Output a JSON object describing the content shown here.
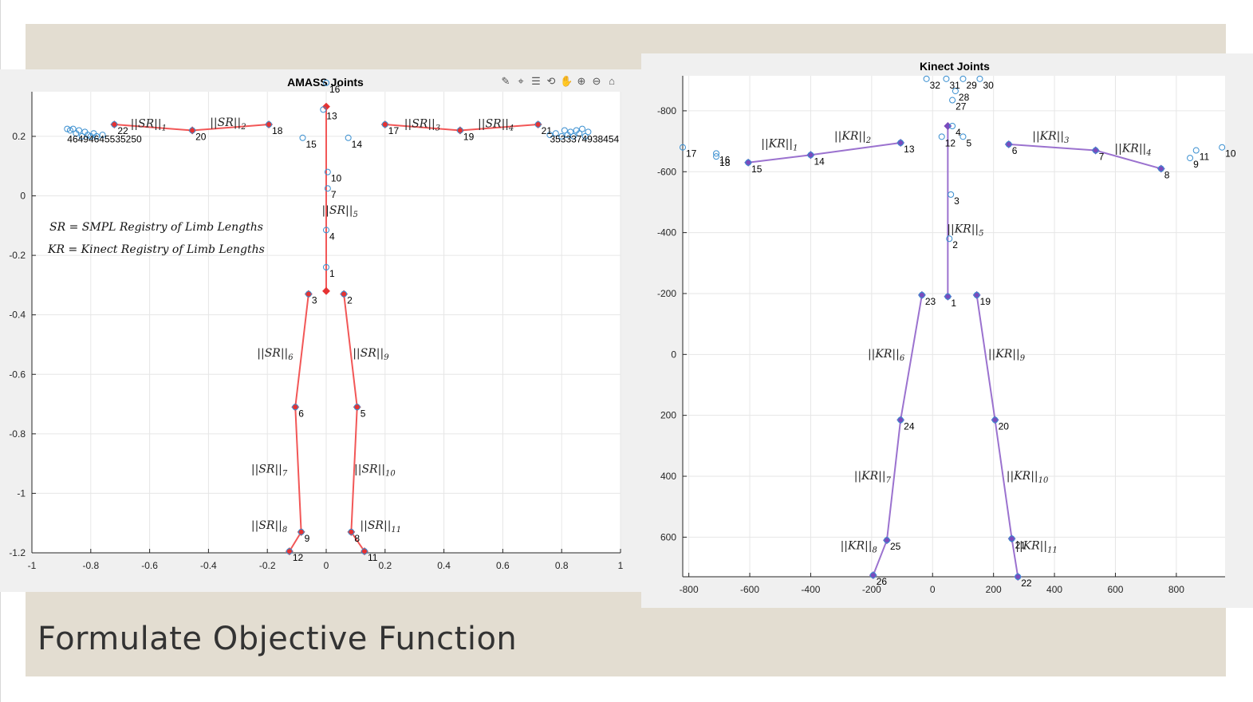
{
  "slide": {
    "title": "Formulate Objective Function",
    "background": "#e3ddd1"
  },
  "amass": {
    "toolbar_icons": [
      "brush-icon",
      "data-tip-icon",
      "legend-icon",
      "rotate-icon",
      "pan-icon",
      "zoom-in-icon",
      "zoom-out-icon",
      "home-icon"
    ],
    "notes": {
      "sr": "SR = SMPL Registry of Limb Lengths",
      "kr": "KR = Kinect Registry of Limb Lengths"
    }
  },
  "chart_data": [
    {
      "type": "scatter",
      "title": "AMASS Joints",
      "xlim": [
        -1,
        1
      ],
      "ylim": [
        -1.2,
        0.35
      ],
      "grid": true,
      "xticks": [
        -1,
        -0.8,
        -0.6,
        -0.4,
        -0.2,
        0,
        0.2,
        0.4,
        0.6,
        0.8,
        1
      ],
      "xtick_labels": [
        "-1",
        "-0.8",
        "-0.6",
        "-0.4",
        "-0.2",
        "0",
        "0.2",
        "0.4",
        "0.6",
        "0.8",
        "1"
      ],
      "yticks": [
        0.2,
        0,
        -0.2,
        -0.4,
        -0.6,
        -0.8,
        -1,
        -1.2
      ],
      "ytick_labels": [
        "0.2",
        "0",
        "-0.2",
        "-0.4",
        "-0.6",
        "-0.8",
        "-1",
        "-1.2"
      ],
      "joints": [
        {
          "label": "1",
          "x": 0.0,
          "y": -0.24
        },
        {
          "label": "2",
          "x": 0.06,
          "y": -0.33
        },
        {
          "label": "3",
          "x": -0.06,
          "y": -0.33
        },
        {
          "label": "4",
          "x": 0.0,
          "y": -0.115
        },
        {
          "label": "5",
          "x": 0.105,
          "y": -0.71
        },
        {
          "label": "6",
          "x": -0.105,
          "y": -0.71
        },
        {
          "label": "7",
          "x": 0.005,
          "y": 0.025
        },
        {
          "label": "8",
          "x": 0.085,
          "y": -1.13
        },
        {
          "label": "9",
          "x": -0.085,
          "y": -1.13
        },
        {
          "label": "10",
          "x": 0.005,
          "y": 0.08
        },
        {
          "label": "11",
          "x": 0.13,
          "y": -1.195
        },
        {
          "label": "12",
          "x": -0.125,
          "y": -1.195
        },
        {
          "label": "13",
          "x": -0.01,
          "y": 0.29
        },
        {
          "label": "14",
          "x": 0.075,
          "y": 0.195
        },
        {
          "label": "15",
          "x": -0.08,
          "y": 0.195
        },
        {
          "label": "16",
          "x": 0.0,
          "y": 0.38
        },
        {
          "label": "17",
          "x": 0.2,
          "y": 0.24
        },
        {
          "label": "18",
          "x": -0.195,
          "y": 0.24
        },
        {
          "label": "19",
          "x": 0.455,
          "y": 0.22
        },
        {
          "label": "20",
          "x": -0.455,
          "y": 0.22
        },
        {
          "label": "21",
          "x": 0.72,
          "y": 0.24
        },
        {
          "label": "22",
          "x": -0.72,
          "y": 0.24
        }
      ],
      "hand_cluster_left": [
        {
          "x": -0.88,
          "y": 0.225
        },
        {
          "x": -0.87,
          "y": 0.22
        },
        {
          "x": -0.86,
          "y": 0.225
        },
        {
          "x": -0.85,
          "y": 0.21
        },
        {
          "x": -0.84,
          "y": 0.22
        },
        {
          "x": -0.83,
          "y": 0.2
        },
        {
          "x": -0.82,
          "y": 0.215
        },
        {
          "x": -0.81,
          "y": 0.205
        },
        {
          "x": -0.8,
          "y": 0.2
        },
        {
          "x": -0.79,
          "y": 0.21
        },
        {
          "x": -0.78,
          "y": 0.2
        },
        {
          "x": -0.76,
          "y": 0.205
        }
      ],
      "hand_cluster_right": [
        {
          "x": 0.76,
          "y": 0.205
        },
        {
          "x": 0.78,
          "y": 0.21
        },
        {
          "x": 0.8,
          "y": 0.2
        },
        {
          "x": 0.81,
          "y": 0.22
        },
        {
          "x": 0.82,
          "y": 0.205
        },
        {
          "x": 0.83,
          "y": 0.215
        },
        {
          "x": 0.84,
          "y": 0.2
        },
        {
          "x": 0.85,
          "y": 0.22
        },
        {
          "x": 0.86,
          "y": 0.21
        },
        {
          "x": 0.87,
          "y": 0.225
        },
        {
          "x": 0.88,
          "y": 0.2
        },
        {
          "x": 0.89,
          "y": 0.215
        }
      ],
      "cluster_labels_left": "46494645535250",
      "cluster_labels_right": "3533374938454",
      "limbs": [
        {
          "label": "||SR||1",
          "x": -0.6,
          "y": 0.23,
          "path": [
            [
              -0.72,
              0.24
            ],
            [
              -0.455,
              0.22
            ]
          ]
        },
        {
          "label": "||SR||2",
          "x": -0.33,
          "y": 0.235,
          "path": [
            [
              -0.455,
              0.22
            ],
            [
              -0.195,
              0.24
            ]
          ]
        },
        {
          "label": "||SR||3",
          "x": 0.33,
          "y": 0.23,
          "path": [
            [
              0.2,
              0.24
            ],
            [
              0.455,
              0.22
            ]
          ]
        },
        {
          "label": "||SR||4",
          "x": 0.58,
          "y": 0.23,
          "path": [
            [
              0.455,
              0.22
            ],
            [
              0.72,
              0.24
            ]
          ]
        },
        {
          "label": "||SR||5",
          "x": 0.05,
          "y": -0.06,
          "path": [
            [
              0.0,
              -0.32
            ],
            [
              0.0,
              0.3
            ]
          ]
        },
        {
          "label": "||SR||6",
          "x": -0.17,
          "y": -0.54,
          "path": [
            [
              -0.06,
              -0.33
            ],
            [
              -0.105,
              -0.71
            ],
            [
              -0.085,
              -1.13
            ],
            [
              -0.125,
              -1.195
            ]
          ]
        },
        {
          "label": "||SR||9",
          "x": 0.155,
          "y": -0.54,
          "path": [
            [
              0.06,
              -0.33
            ],
            [
              0.105,
              -0.71
            ],
            [
              0.085,
              -1.13
            ],
            [
              0.13,
              -1.195
            ]
          ]
        },
        {
          "label": "||SR||7",
          "x": -0.19,
          "y": -0.93,
          "path": []
        },
        {
          "label": "||SR||10",
          "x": 0.16,
          "y": -0.93,
          "path": []
        },
        {
          "label": "||SR||8",
          "x": -0.19,
          "y": -1.12,
          "path": []
        },
        {
          "label": "||SR||11",
          "x": 0.18,
          "y": -1.12,
          "path": []
        }
      ],
      "colors": {
        "line": "#f25757",
        "node": "#e63232",
        "marker": "#3a8fd0"
      }
    },
    {
      "type": "scatter",
      "title": "Kinect Joints",
      "xlim": [
        -820,
        960
      ],
      "ylim": [
        -915,
        730
      ],
      "y_reversed": true,
      "grid": true,
      "xticks": [
        -800,
        -600,
        -400,
        -200,
        0,
        200,
        400,
        600,
        800
      ],
      "xtick_labels": [
        "-800",
        "-600",
        "-400",
        "-200",
        "0",
        "200",
        "400",
        "600",
        "800"
      ],
      "yticks": [
        -800,
        -600,
        -400,
        -200,
        0,
        200,
        400,
        600
      ],
      "ytick_labels": [
        "-800",
        "-600",
        "-400",
        "-200",
        "0",
        "200",
        "400",
        "600"
      ],
      "joints": [
        {
          "label": "1",
          "x": 50,
          "y": -190
        },
        {
          "label": "2",
          "x": 55,
          "y": -380
        },
        {
          "label": "3",
          "x": 60,
          "y": -525
        },
        {
          "label": "4",
          "x": 65,
          "y": -750
        },
        {
          "label": "5",
          "x": 100,
          "y": -715
        },
        {
          "label": "6",
          "x": 250,
          "y": -690
        },
        {
          "label": "7",
          "x": 535,
          "y": -670
        },
        {
          "label": "8",
          "x": 750,
          "y": -610
        },
        {
          "label": "9",
          "x": 845,
          "y": -645
        },
        {
          "label": "10",
          "x": 950,
          "y": -680
        },
        {
          "label": "11",
          "x": 865,
          "y": -670
        },
        {
          "label": "12",
          "x": 30,
          "y": -715
        },
        {
          "label": "13",
          "x": -105,
          "y": -695
        },
        {
          "label": "14",
          "x": -400,
          "y": -655
        },
        {
          "label": "15",
          "x": -605,
          "y": -630
        },
        {
          "label": "16",
          "x": -710,
          "y": -660
        },
        {
          "label": "17",
          "x": -820,
          "y": -680
        },
        {
          "label": "18",
          "x": -710,
          "y": -650
        },
        {
          "label": "19",
          "x": 145,
          "y": -195
        },
        {
          "label": "20",
          "x": 205,
          "y": 215
        },
        {
          "label": "21",
          "x": 260,
          "y": 605
        },
        {
          "label": "22",
          "x": 280,
          "y": 730
        },
        {
          "label": "23",
          "x": -35,
          "y": -195
        },
        {
          "label": "24",
          "x": -105,
          "y": 215
        },
        {
          "label": "25",
          "x": -150,
          "y": 610
        },
        {
          "label": "26",
          "x": -195,
          "y": 725
        },
        {
          "label": "27",
          "x": 65,
          "y": -835
        },
        {
          "label": "28",
          "x": 75,
          "y": -865
        },
        {
          "label": "29",
          "x": 100,
          "y": -905
        },
        {
          "label": "30",
          "x": 155,
          "y": -905
        },
        {
          "label": "31",
          "x": 45,
          "y": -905
        },
        {
          "label": "32",
          "x": -20,
          "y": -905
        }
      ],
      "limbs": [
        {
          "label": "||KR||1",
          "x": -500,
          "y": -680,
          "path": [
            [
              -605,
              -630
            ],
            [
              -400,
              -655
            ]
          ]
        },
        {
          "label": "||KR||2",
          "x": -260,
          "y": -705,
          "path": [
            [
              -400,
              -655
            ],
            [
              -105,
              -695
            ]
          ]
        },
        {
          "label": "||KR||3",
          "x": 390,
          "y": -705,
          "path": [
            [
              250,
              -690
            ],
            [
              535,
              -670
            ]
          ]
        },
        {
          "label": "||KR||4",
          "x": 660,
          "y": -665,
          "path": [
            [
              535,
              -670
            ],
            [
              750,
              -610
            ]
          ]
        },
        {
          "label": "||KR||5",
          "x": 110,
          "y": -400,
          "path": [
            [
              50,
              -190
            ],
            [
              50,
              -750
            ]
          ]
        },
        {
          "label": "||KR||6",
          "x": -150,
          "y": 10,
          "path": [
            [
              -35,
              -195
            ],
            [
              -105,
              215
            ],
            [
              -150,
              610
            ],
            [
              -195,
              725
            ]
          ]
        },
        {
          "label": "||KR||9",
          "x": 245,
          "y": 10,
          "path": [
            [
              145,
              -195
            ],
            [
              205,
              215
            ],
            [
              260,
              605
            ],
            [
              280,
              730
            ]
          ]
        },
        {
          "label": "||KR||7",
          "x": -195,
          "y": 410,
          "path": []
        },
        {
          "label": "||KR||10",
          "x": 305,
          "y": 410,
          "path": []
        },
        {
          "label": "||KR||8",
          "x": -240,
          "y": 640,
          "path": []
        },
        {
          "label": "||KR||11",
          "x": 335,
          "y": 640,
          "path": []
        }
      ],
      "colors": {
        "line": "#9b72cf",
        "node": "#7a4bbd",
        "marker": "#3a8fd0"
      }
    }
  ]
}
